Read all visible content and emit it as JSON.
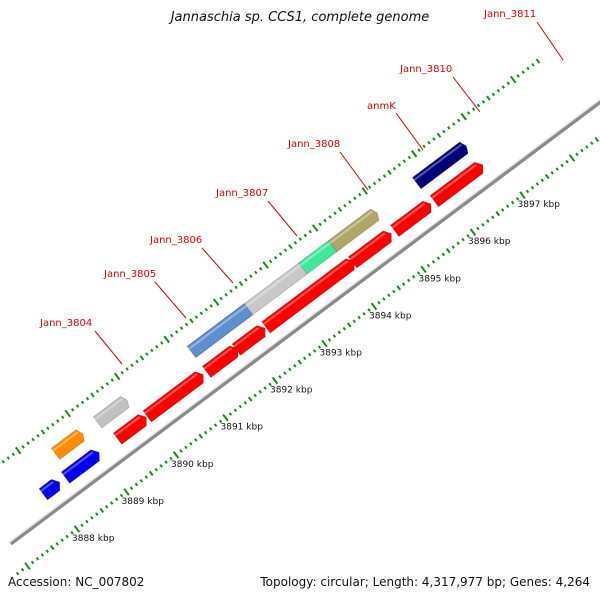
{
  "map": {
    "title": "Jannaschia sp. CCS1, complete genome",
    "accession": "Accession: NC_007802",
    "summary": "Topology: circular; Length: 4,317,977 bp; Genes: 4,264"
  },
  "colors": {
    "backbone": "#888888",
    "ticks": "#1a8c1a",
    "label": "#e00000",
    "leader": "#e00000",
    "cds": "#ff0000"
  },
  "scale": {
    "unit": "kbp",
    "tick_labels": [
      {
        "kbp": 3888,
        "text": "3888 kbp"
      },
      {
        "kbp": 3889,
        "text": "3889 kbp"
      },
      {
        "kbp": 3890,
        "text": "3890 kbp"
      },
      {
        "kbp": 3891,
        "text": "3891 kbp"
      },
      {
        "kbp": 3892,
        "text": "3892 kbp"
      },
      {
        "kbp": 3893,
        "text": "3893 kbp"
      },
      {
        "kbp": 3894,
        "text": "3894 kbp"
      },
      {
        "kbp": 3895,
        "text": "3895 kbp"
      },
      {
        "kbp": 3896,
        "text": "3896 kbp"
      },
      {
        "kbp": 3897,
        "text": "3897 kbp"
      }
    ]
  },
  "genes": [
    {
      "name": "Jann_3804"
    },
    {
      "name": "Jann_3805"
    },
    {
      "name": "Jann_3806"
    },
    {
      "name": "Jann_3807"
    },
    {
      "name": "Jann_3808"
    },
    {
      "name": "anmK"
    },
    {
      "name": "Jann_3810"
    },
    {
      "name": "Jann_3811"
    }
  ],
  "features": [
    {
      "kind": "cds",
      "color": "#0000ee",
      "start": 3887.9,
      "end": 3888.15
    },
    {
      "kind": "cds",
      "color": "#0000ee",
      "start": 3888.35,
      "end": 3888.95
    },
    {
      "kind": "other",
      "color": "#ff8c00",
      "start": 3888.45,
      "end": 3888.95
    },
    {
      "kind": "cds",
      "color": "#ff0000",
      "start": 3889.4,
      "end": 3889.9
    },
    {
      "kind": "other",
      "color": "#c0c0c0",
      "start": 3889.3,
      "end": 3889.85
    },
    {
      "kind": "cds",
      "color": "#ff0000",
      "start": 3890.0,
      "end": 3891.05
    },
    {
      "kind": "cds",
      "color": "#ff0000",
      "start": 3891.2,
      "end": 3891.75
    },
    {
      "kind": "cds",
      "color": "#ff0000",
      "start": 3891.8,
      "end": 3892.3
    },
    {
      "kind": "other",
      "color": "#4a4a8c",
      "start": 3891.2,
      "end": 3892.35
    },
    {
      "kind": "other",
      "color": "#5f8fcf",
      "start": 3891.2,
      "end": 3892.35
    },
    {
      "kind": "cds",
      "color": "#ff0000",
      "start": 3892.4,
      "end": 3894.1
    },
    {
      "kind": "other",
      "color": "#c8c8c8",
      "start": 3892.35,
      "end": 3893.45
    },
    {
      "kind": "other",
      "color": "#40e89a",
      "start": 3893.45,
      "end": 3894.05
    },
    {
      "kind": "cds",
      "color": "#ff0000",
      "start": 3894.15,
      "end": 3894.85
    },
    {
      "kind": "other",
      "color": "#b0a66a",
      "start": 3894.05,
      "end": 3894.9
    },
    {
      "kind": "cds",
      "color": "#ff0000",
      "start": 3895.0,
      "end": 3895.65
    },
    {
      "kind": "cds",
      "color": "#ff0000",
      "start": 3895.8,
      "end": 3896.7
    },
    {
      "kind": "other",
      "color": "#5f8fcf",
      "start": 3895.75,
      "end": 3896.7
    },
    {
      "kind": "other",
      "color": "#00007a",
      "start": 3895.75,
      "end": 3896.7
    }
  ]
}
